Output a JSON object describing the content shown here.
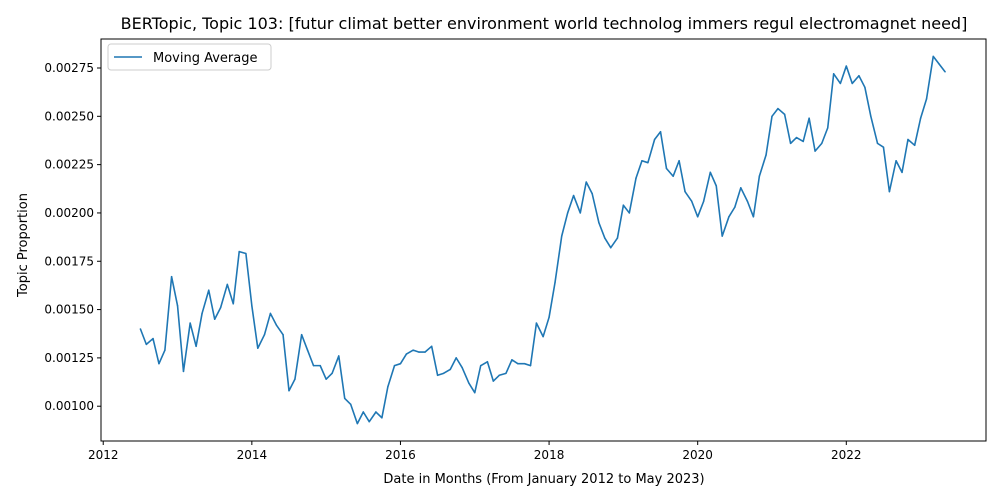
{
  "chart_data": {
    "type": "line",
    "title": "BERTopic, Topic 103: [futur climat better environment world technolog immers regul electromagnet need]",
    "xlabel": "Date in Months (From January 2012 to May 2023)",
    "ylabel": "Topic Proportion",
    "legend_position": "top-left",
    "grid": false,
    "xlim": [
      2011.97,
      2023.88
    ],
    "ylim": [
      0.00082,
      0.0029
    ],
    "x_ticks": [
      2012,
      2014,
      2016,
      2018,
      2020,
      2022
    ],
    "x_tick_labels": [
      "2012",
      "2014",
      "2016",
      "2018",
      "2020",
      "2022"
    ],
    "y_ticks": [
      0.001,
      0.00125,
      0.0015,
      0.00175,
      0.002,
      0.00225,
      0.0025,
      0.00275
    ],
    "y_tick_labels": [
      "0.00100",
      "0.00125",
      "0.00150",
      "0.00175",
      "0.00200",
      "0.00225",
      "0.00250",
      "0.00275"
    ],
    "series": [
      {
        "name": "Moving Average",
        "color": "#1f77b4",
        "x": [
          2012.5,
          2012.58,
          2012.67,
          2012.75,
          2012.83,
          2012.92,
          2013.0,
          2013.08,
          2013.17,
          2013.25,
          2013.33,
          2013.42,
          2013.5,
          2013.58,
          2013.67,
          2013.75,
          2013.83,
          2013.92,
          2014.0,
          2014.08,
          2014.17,
          2014.25,
          2014.33,
          2014.42,
          2014.5,
          2014.58,
          2014.67,
          2014.75,
          2014.83,
          2014.92,
          2015.0,
          2015.08,
          2015.17,
          2015.25,
          2015.33,
          2015.42,
          2015.5,
          2015.58,
          2015.67,
          2015.75,
          2015.83,
          2015.92,
          2016.0,
          2016.08,
          2016.17,
          2016.25,
          2016.33,
          2016.42,
          2016.5,
          2016.58,
          2016.67,
          2016.75,
          2016.83,
          2016.92,
          2017.0,
          2017.08,
          2017.17,
          2017.25,
          2017.33,
          2017.42,
          2017.5,
          2017.58,
          2017.67,
          2017.75,
          2017.83,
          2017.92,
          2018.0,
          2018.08,
          2018.17,
          2018.25,
          2018.33,
          2018.42,
          2018.5,
          2018.58,
          2018.67,
          2018.75,
          2018.83,
          2018.92,
          2019.0,
          2019.08,
          2019.17,
          2019.25,
          2019.33,
          2019.42,
          2019.5,
          2019.58,
          2019.67,
          2019.75,
          2019.83,
          2019.92,
          2020.0,
          2020.08,
          2020.17,
          2020.25,
          2020.33,
          2020.42,
          2020.5,
          2020.58,
          2020.67,
          2020.75,
          2020.83,
          2020.92,
          2021.0,
          2021.08,
          2021.17,
          2021.25,
          2021.33,
          2021.42,
          2021.5,
          2021.58,
          2021.67,
          2021.75,
          2021.83,
          2021.92,
          2022.0,
          2022.08,
          2022.17,
          2022.25,
          2022.33,
          2022.42,
          2022.5,
          2022.58,
          2022.67,
          2022.75,
          2022.83,
          2022.92,
          2023.0,
          2023.08,
          2023.17,
          2023.25,
          2023.33
        ],
        "values": [
          0.0014,
          0.00132,
          0.00135,
          0.00122,
          0.00129,
          0.00167,
          0.00152,
          0.00118,
          0.00143,
          0.00131,
          0.00148,
          0.0016,
          0.00145,
          0.00151,
          0.00163,
          0.00153,
          0.0018,
          0.00179,
          0.00152,
          0.0013,
          0.00137,
          0.00148,
          0.00142,
          0.00137,
          0.00108,
          0.00114,
          0.00137,
          0.00129,
          0.00121,
          0.00121,
          0.00114,
          0.00117,
          0.00126,
          0.00104,
          0.00101,
          0.00091,
          0.00097,
          0.00092,
          0.00097,
          0.00094,
          0.0011,
          0.00121,
          0.00122,
          0.00127,
          0.00129,
          0.00128,
          0.00128,
          0.00131,
          0.00116,
          0.00117,
          0.00119,
          0.00125,
          0.0012,
          0.00112,
          0.00107,
          0.00121,
          0.00123,
          0.00113,
          0.00116,
          0.00117,
          0.00124,
          0.00122,
          0.00122,
          0.00121,
          0.00143,
          0.00136,
          0.00146,
          0.00164,
          0.00188,
          0.002,
          0.00209,
          0.002,
          0.00216,
          0.0021,
          0.00195,
          0.00187,
          0.00182,
          0.00187,
          0.00204,
          0.002,
          0.00218,
          0.00227,
          0.00226,
          0.00238,
          0.00242,
          0.00223,
          0.00219,
          0.00227,
          0.00211,
          0.00206,
          0.00198,
          0.00206,
          0.00221,
          0.00214,
          0.00188,
          0.00198,
          0.00203,
          0.00213,
          0.00206,
          0.00198,
          0.00219,
          0.0023,
          0.0025,
          0.00254,
          0.00251,
          0.00236,
          0.00239,
          0.00237,
          0.00249,
          0.00232,
          0.00236,
          0.00244,
          0.00272,
          0.00267,
          0.00276,
          0.00267,
          0.00271,
          0.00265,
          0.0025,
          0.00236,
          0.00234,
          0.00211,
          0.00227,
          0.00221,
          0.00238,
          0.00235,
          0.00249,
          0.00259,
          0.00281,
          0.00277,
          0.00273
        ]
      }
    ]
  }
}
